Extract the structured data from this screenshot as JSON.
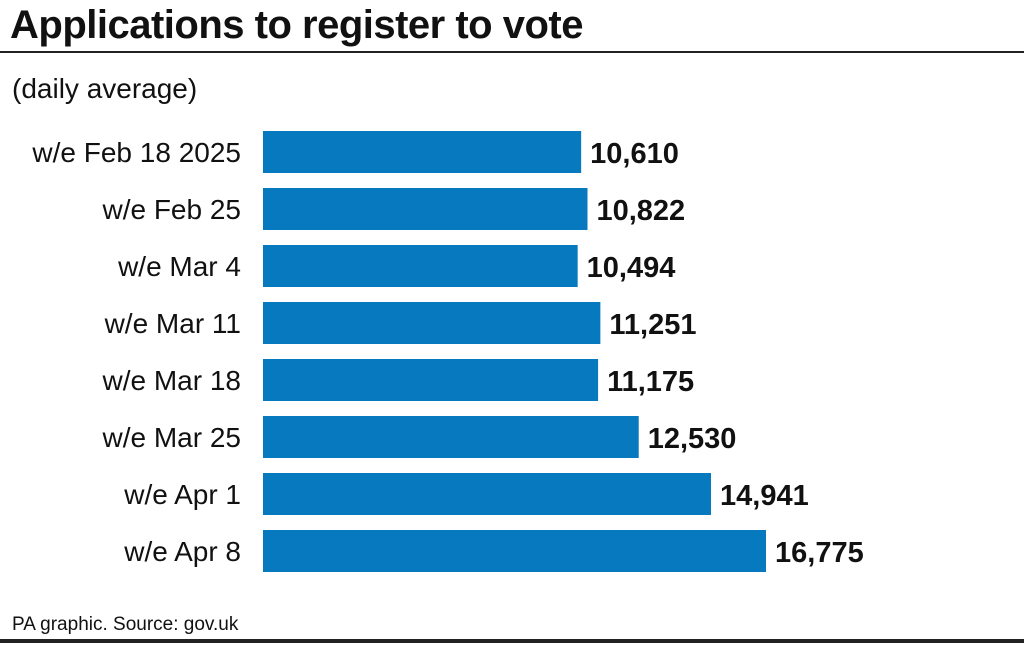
{
  "header": {
    "title": "Applications to register to vote",
    "subtitle": "(daily average)"
  },
  "footer": {
    "source": "PA graphic. Source: gov.uk"
  },
  "colors": {
    "bar": "#0779be",
    "text": "#111111"
  },
  "chart_data": {
    "type": "bar",
    "orientation": "horizontal",
    "title": "Applications to register to vote",
    "subtitle": "(daily average)",
    "categories": [
      "w/e Feb 18 2025",
      "w/e Feb 25",
      "w/e Mar 4",
      "w/e Mar 11",
      "w/e Mar 18",
      "w/e Mar 25",
      "w/e Apr 1",
      "w/e Apr 8"
    ],
    "values": [
      10610,
      10822,
      10494,
      11251,
      11175,
      12530,
      14941,
      16775
    ],
    "value_labels": [
      "10,610",
      "10,822",
      "10,494",
      "11,251",
      "11,175",
      "12,530",
      "14,941",
      "16,775"
    ],
    "xlim": [
      0,
      16775
    ],
    "grid": false,
    "legend": "none",
    "source": "PA graphic. Source: gov.uk"
  }
}
